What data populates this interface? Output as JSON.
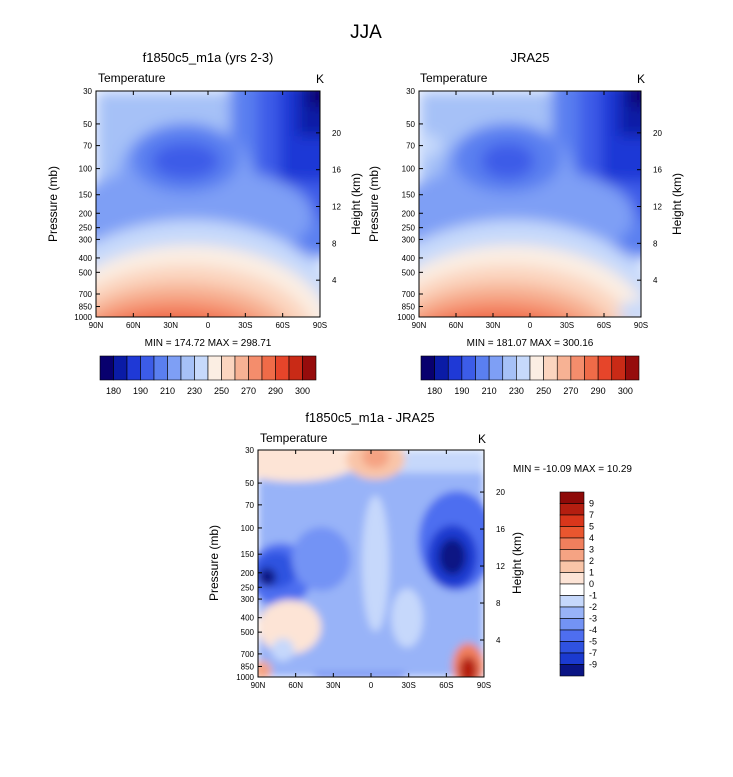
{
  "figure": {
    "title": "JJA"
  },
  "colors": {
    "temperature_scale": [
      "#08006e",
      "#0a1ba6",
      "#1f39d6",
      "#3c5ce8",
      "#5a7ff0",
      "#7e9ff5",
      "#a6c1f7",
      "#c6d9fb",
      "#fbeee3",
      "#fbd5bf",
      "#f7b294",
      "#f48d6c",
      "#ef6b48",
      "#e6452a",
      "#c92a16",
      "#960c0c"
    ],
    "diff_scale": [
      "#0a1484",
      "#1b3ad0",
      "#2f52e0",
      "#4e6ef0",
      "#7393f5",
      "#98b3f8",
      "#c6d8fb",
      "#ffffff",
      "#fde4d6",
      "#f9c5a8",
      "#f5a383",
      "#f07f5d",
      "#e9562f",
      "#d9361b",
      "#b41e10",
      "#8e0a08"
    ]
  },
  "chart_data": [
    {
      "type": "heatmap",
      "title": "f1850c5_m1a (yrs 2-3)",
      "left_label": "Temperature",
      "right_label": "K",
      "ylabel": "Pressure (mb)",
      "ylabel_right": "Height (km)",
      "x_ticks": [
        "90N",
        "60N",
        "30N",
        "0",
        "30S",
        "60S",
        "90S"
      ],
      "y_ticks": [
        "30",
        "50",
        "70",
        "100",
        "150",
        "200",
        "250",
        "300",
        "400",
        "500",
        "700",
        "850",
        "1000"
      ],
      "y_ticks_right": [
        "20",
        "16",
        "12",
        "8",
        "4"
      ],
      "min_max": "MIN = 174.72  MAX = 298.71",
      "colorbar_labels": [
        "180",
        "190",
        "210",
        "230",
        "250",
        "270",
        "290",
        "300"
      ],
      "lat_range": [
        90,
        -90
      ],
      "pressure_range": [
        1000,
        30
      ],
      "y_scale": "log",
      "contour_levels": [
        175,
        180,
        185,
        190,
        200,
        210,
        220,
        230,
        240,
        250,
        260,
        270,
        280,
        290,
        295,
        300
      ]
    },
    {
      "type": "heatmap",
      "title": "JRA25",
      "left_label": "Temperature",
      "right_label": "K",
      "ylabel": "Pressure (mb)",
      "ylabel_right": "Height (km)",
      "x_ticks": [
        "90N",
        "60N",
        "30N",
        "0",
        "30S",
        "60S",
        "90S"
      ],
      "y_ticks": [
        "30",
        "50",
        "70",
        "100",
        "150",
        "200",
        "250",
        "300",
        "400",
        "500",
        "700",
        "850",
        "1000"
      ],
      "y_ticks_right": [
        "20",
        "16",
        "12",
        "8",
        "4"
      ],
      "min_max": "MIN = 181.07  MAX = 300.16",
      "colorbar_labels": [
        "180",
        "190",
        "210",
        "230",
        "250",
        "270",
        "290",
        "300"
      ],
      "lat_range": [
        90,
        -90
      ],
      "pressure_range": [
        1000,
        30
      ],
      "y_scale": "log",
      "contour_levels": [
        175,
        180,
        185,
        190,
        200,
        210,
        220,
        230,
        240,
        250,
        260,
        270,
        280,
        290,
        295,
        300
      ]
    },
    {
      "type": "heatmap",
      "title": "f1850c5_m1a - JRA25",
      "left_label": "Temperature",
      "right_label": "K",
      "ylabel": "Pressure (mb)",
      "ylabel_right": "Height (km)",
      "x_ticks": [
        "90N",
        "60N",
        "30N",
        "0",
        "30S",
        "60S",
        "90S"
      ],
      "y_ticks": [
        "30",
        "50",
        "70",
        "100",
        "150",
        "200",
        "250",
        "300",
        "400",
        "500",
        "700",
        "850",
        "1000"
      ],
      "y_ticks_right": [
        "20",
        "16",
        "12",
        "8",
        "4"
      ],
      "min_max": "MIN = -10.09  MAX =  10.29",
      "colorbar_labels": [
        "9",
        "7",
        "5",
        "4",
        "3",
        "2",
        "1",
        "0",
        "-1",
        "-2",
        "-3",
        "-4",
        "-5",
        "-7",
        "-9"
      ],
      "lat_range": [
        90,
        -90
      ],
      "pressure_range": [
        1000,
        30
      ],
      "y_scale": "log",
      "contour_levels": [
        -10,
        -9,
        -7,
        -5,
        -4,
        -3,
        -2,
        -1,
        1,
        2,
        3,
        4,
        5,
        7,
        9,
        10
      ]
    }
  ]
}
